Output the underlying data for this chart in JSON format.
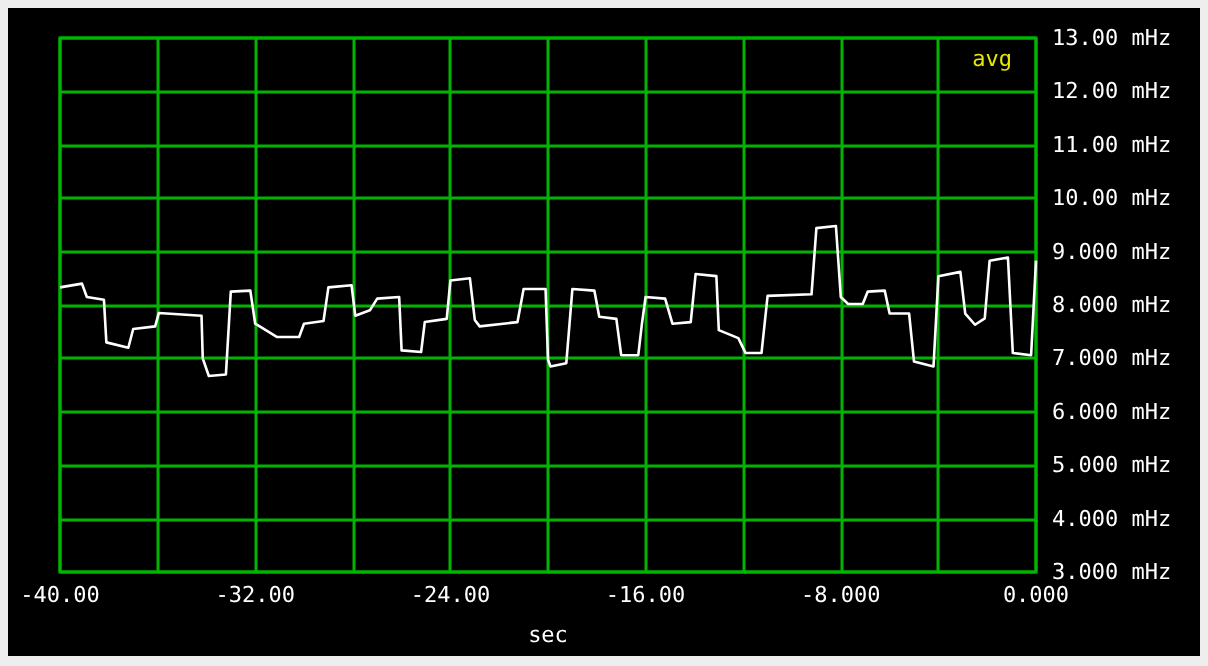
{
  "chart_data": {
    "type": "line",
    "xlabel": "sec",
    "annotations": [
      "avg"
    ],
    "series": [
      {
        "color": "#ffffff",
        "x": [
          -40,
          -39.1,
          -38.9,
          -38.2,
          -38.1,
          -37.2,
          -37.0,
          -36.1,
          -35.95,
          -34.2,
          -34.15,
          -33.9,
          -33.2,
          -33.0,
          -32.2,
          -32.0,
          -31.1,
          -30.2,
          -30.0,
          -29.2,
          -29.0,
          -28.05,
          -27.9,
          -27.3,
          -27.0,
          -26.1,
          -26.0,
          -25.2,
          -25.05,
          -24.15,
          -24.0,
          -23.2,
          -23.0,
          -22.8,
          -21.25,
          -21.0,
          -20.1,
          -20.0,
          -19.9,
          -19.25,
          -19.0,
          -18.1,
          -17.9,
          -17.2,
          -17.0,
          -16.3,
          -16.15,
          -16.0,
          -15.2,
          -14.9,
          -14.15,
          -13.95,
          -13.1,
          -13.0,
          -12.2,
          -11.9,
          -11.25,
          -11.0,
          -9.2,
          -9.0,
          -8.2,
          -8.0,
          -7.7,
          -7.1,
          -6.9,
          -6.2,
          -6.0,
          -5.2,
          -5.0,
          -4.2,
          -4.0,
          -3.1,
          -2.9,
          -2.5,
          -2.1,
          -1.9,
          -1.15,
          -0.95,
          -0.2,
          0
        ],
        "values": [
          8.33,
          8.4,
          8.15,
          8.1,
          7.3,
          7.2,
          7.55,
          7.6,
          7.85,
          7.8,
          7.0,
          6.67,
          6.7,
          8.25,
          8.27,
          7.65,
          7.4,
          7.4,
          7.65,
          7.7,
          8.33,
          8.37,
          7.8,
          7.9,
          8.12,
          8.15,
          7.15,
          7.12,
          7.68,
          7.74,
          8.46,
          8.5,
          7.72,
          7.6,
          7.68,
          8.3,
          8.3,
          6.98,
          6.85,
          6.91,
          8.3,
          8.27,
          7.78,
          7.74,
          7.06,
          7.06,
          7.65,
          8.15,
          8.12,
          7.65,
          7.68,
          8.58,
          8.54,
          7.53,
          7.38,
          7.1,
          7.1,
          8.17,
          8.2,
          9.44,
          9.48,
          8.15,
          8.02,
          8.02,
          8.25,
          8.27,
          7.84,
          7.84,
          6.94,
          6.85,
          8.54,
          8.62,
          7.84,
          7.63,
          7.75,
          8.83,
          8.89,
          7.1,
          7.06,
          8.83
        ]
      }
    ],
    "xlim": [
      -40,
      0
    ],
    "xticks": [
      {
        "value": -40,
        "label": "-40.00"
      },
      {
        "value": -36,
        "label": null
      },
      {
        "value": -32,
        "label": "-32.00"
      },
      {
        "value": -28,
        "label": null
      },
      {
        "value": -24,
        "label": "-24.00"
      },
      {
        "value": -20,
        "label": null
      },
      {
        "value": -16,
        "label": "-16.00"
      },
      {
        "value": -12,
        "label": null
      },
      {
        "value": -8,
        "label": "-8.000"
      },
      {
        "value": -4,
        "label": null
      },
      {
        "value": 0,
        "label": "0.000"
      }
    ],
    "ylim": [
      3,
      13
    ],
    "yticks": [
      {
        "value": 3,
        "label": "3.000 mHz"
      },
      {
        "value": 4,
        "label": "4.000 mHz"
      },
      {
        "value": 5,
        "label": "5.000 mHz"
      },
      {
        "value": 6,
        "label": "6.000 mHz"
      },
      {
        "value": 7,
        "label": "7.000 mHz"
      },
      {
        "value": 8,
        "label": "8.000 mHz"
      },
      {
        "value": 9,
        "label": "9.000 mHz"
      },
      {
        "value": 10,
        "label": "10.00 mHz"
      },
      {
        "value": 11,
        "label": "11.00 mHz"
      },
      {
        "value": 12,
        "label": "12.00 mHz"
      },
      {
        "value": 13,
        "label": "13.00 mHz"
      }
    ],
    "grid": true,
    "marker": "none",
    "line_style": "solid"
  }
}
